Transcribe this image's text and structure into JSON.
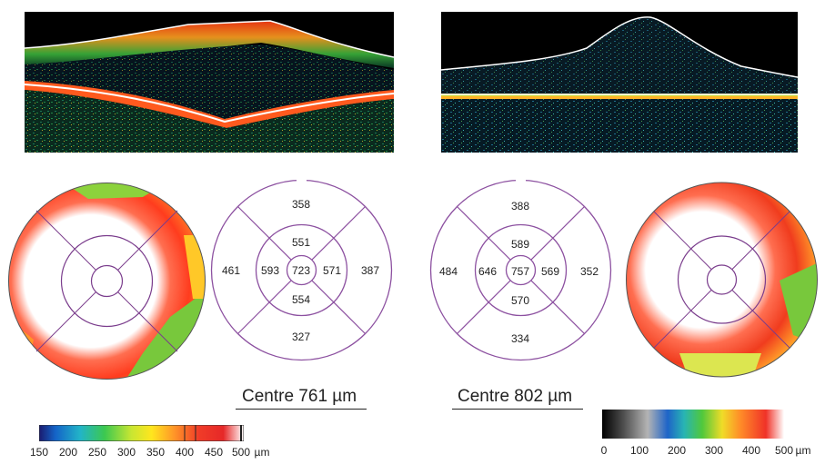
{
  "left_eye": {
    "etdrs_values": {
      "superior_outer": "358",
      "superior_inner": "551",
      "nasal_outer": "461",
      "nasal_inner": "593",
      "centre": "723",
      "temporal_inner": "571",
      "temporal_outer": "387",
      "inferior_inner": "554",
      "inferior_outer": "327"
    },
    "caption": "Centre 761 µm",
    "colorbar": {
      "ticks": [
        "150",
        "200",
        "250",
        "300",
        "350",
        "400",
        "450",
        "500"
      ],
      "unit": "µm",
      "colors": [
        "#1a1a6e",
        "#1464c8",
        "#22b4c8",
        "#3cc850",
        "#c8e632",
        "#ffe61e",
        "#ff9628",
        "#f03c28",
        "#e62828",
        "#ffffff"
      ]
    }
  },
  "right_eye": {
    "etdrs_values": {
      "superior_outer": "388",
      "superior_inner": "589",
      "nasal_outer": "484",
      "nasal_inner": "646",
      "centre": "757",
      "temporal_inner": "569",
      "temporal_outer": "352",
      "inferior_inner": "570",
      "inferior_outer": "334"
    },
    "caption": "Centre 802 µm",
    "colorbar": {
      "ticks": [
        "0",
        "100",
        "200",
        "300",
        "400",
        "500"
      ],
      "unit": "µm",
      "colors": [
        "#000000",
        "#505050",
        "#b4b4b4",
        "#1e64c8",
        "#28b4b4",
        "#50c83c",
        "#f0dc28",
        "#ff8c28",
        "#f03228",
        "#ffffff"
      ]
    }
  }
}
